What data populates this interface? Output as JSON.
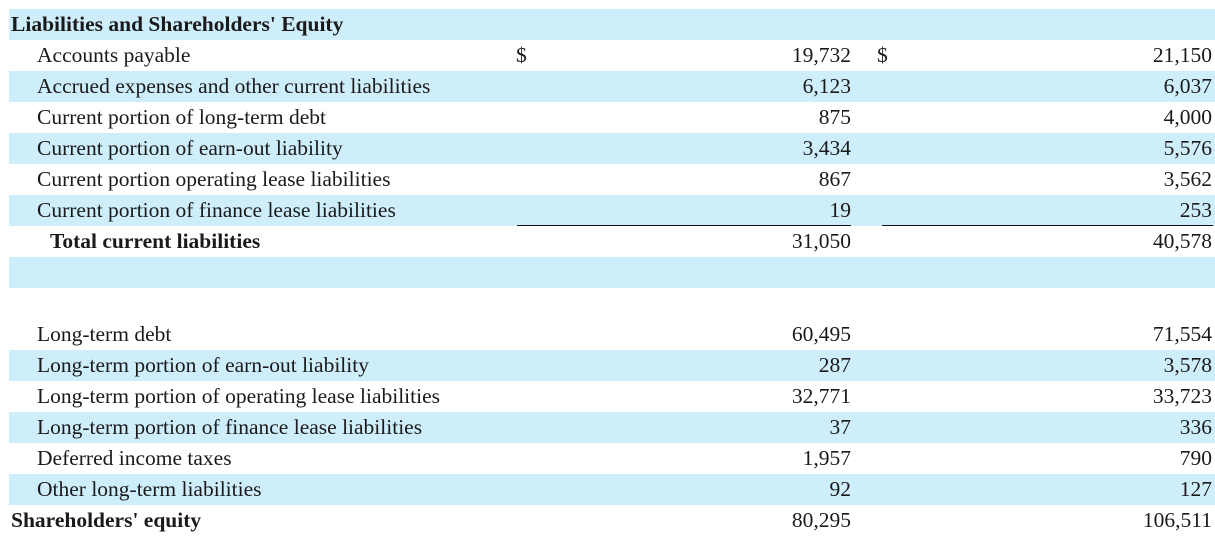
{
  "section_title": "Liabilities and Shareholders' Equity",
  "currency_symbol": "$",
  "current_rows": [
    {
      "label": "Accounts payable",
      "v1": "19,732",
      "v2": "21,150"
    },
    {
      "label": "Accrued expenses and other current liabilities",
      "v1": "6,123",
      "v2": "6,037"
    },
    {
      "label": "Current portion of long-term debt",
      "v1": "875",
      "v2": "4,000"
    },
    {
      "label": "Current portion of earn-out liability",
      "v1": "3,434",
      "v2": "5,576"
    },
    {
      "label": "Current portion operating lease liabilities",
      "v1": "867",
      "v2": "3,562"
    },
    {
      "label": "Current portion of finance lease liabilities",
      "v1": "19",
      "v2": "253"
    }
  ],
  "total_current": {
    "label": "Total current liabilities",
    "v1": "31,050",
    "v2": "40,578"
  },
  "longterm_rows": [
    {
      "label": "Long-term debt",
      "v1": "60,495",
      "v2": "71,554"
    },
    {
      "label": "Long-term portion of earn-out liability",
      "v1": "287",
      "v2": "3,578"
    },
    {
      "label": "Long-term portion of operating lease liabilities",
      "v1": "32,771",
      "v2": "33,723"
    },
    {
      "label": "Long-term portion of finance lease liabilities",
      "v1": "37",
      "v2": "336"
    },
    {
      "label": "Deferred income taxes",
      "v1": "1,957",
      "v2": "790"
    },
    {
      "label": "Other long-term liabilities",
      "v1": "92",
      "v2": "127"
    }
  ],
  "equity": {
    "label": "Shareholders' equity",
    "v1": "80,295",
    "v2": "106,511"
  },
  "colors": {
    "row_shade": "#cfeefc",
    "text": "#1a1a1a",
    "rule": "#111111"
  }
}
